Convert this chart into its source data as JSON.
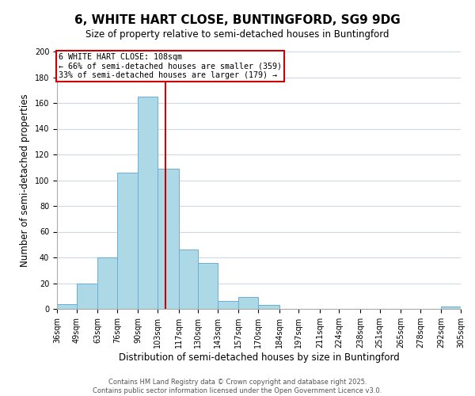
{
  "title": "6, WHITE HART CLOSE, BUNTINGFORD, SG9 9DG",
  "subtitle": "Size of property relative to semi-detached houses in Buntingford",
  "xlabel": "Distribution of semi-detached houses by size in Buntingford",
  "ylabel": "Number of semi-detached properties",
  "bin_labels": [
    "36sqm",
    "49sqm",
    "63sqm",
    "76sqm",
    "90sqm",
    "103sqm",
    "117sqm",
    "130sqm",
    "143sqm",
    "157sqm",
    "170sqm",
    "184sqm",
    "197sqm",
    "211sqm",
    "224sqm",
    "238sqm",
    "251sqm",
    "265sqm",
    "278sqm",
    "292sqm",
    "305sqm"
  ],
  "bin_edges": [
    36,
    49,
    63,
    76,
    90,
    103,
    117,
    130,
    143,
    157,
    170,
    184,
    197,
    211,
    224,
    238,
    251,
    265,
    278,
    292,
    305
  ],
  "bar_heights": [
    4,
    20,
    40,
    106,
    165,
    109,
    46,
    36,
    6,
    9,
    3,
    0,
    0,
    0,
    0,
    0,
    0,
    0,
    0,
    2
  ],
  "bar_color": "#add8e6",
  "bar_edge_color": "#6baed6",
  "property_line_x": 108,
  "vline_color": "#cc0000",
  "annotation_title": "6 WHITE HART CLOSE: 108sqm",
  "annotation_line1": "← 66% of semi-detached houses are smaller (359)",
  "annotation_line2": "33% of semi-detached houses are larger (179) →",
  "box_color": "#cc0000",
  "ylim": [
    0,
    200
  ],
  "yticks": [
    0,
    20,
    40,
    60,
    80,
    100,
    120,
    140,
    160,
    180,
    200
  ],
  "background_color": "#ffffff",
  "grid_color": "#cdd9e5",
  "footer_line1": "Contains HM Land Registry data © Crown copyright and database right 2025.",
  "footer_line2": "Contains public sector information licensed under the Open Government Licence v3.0."
}
